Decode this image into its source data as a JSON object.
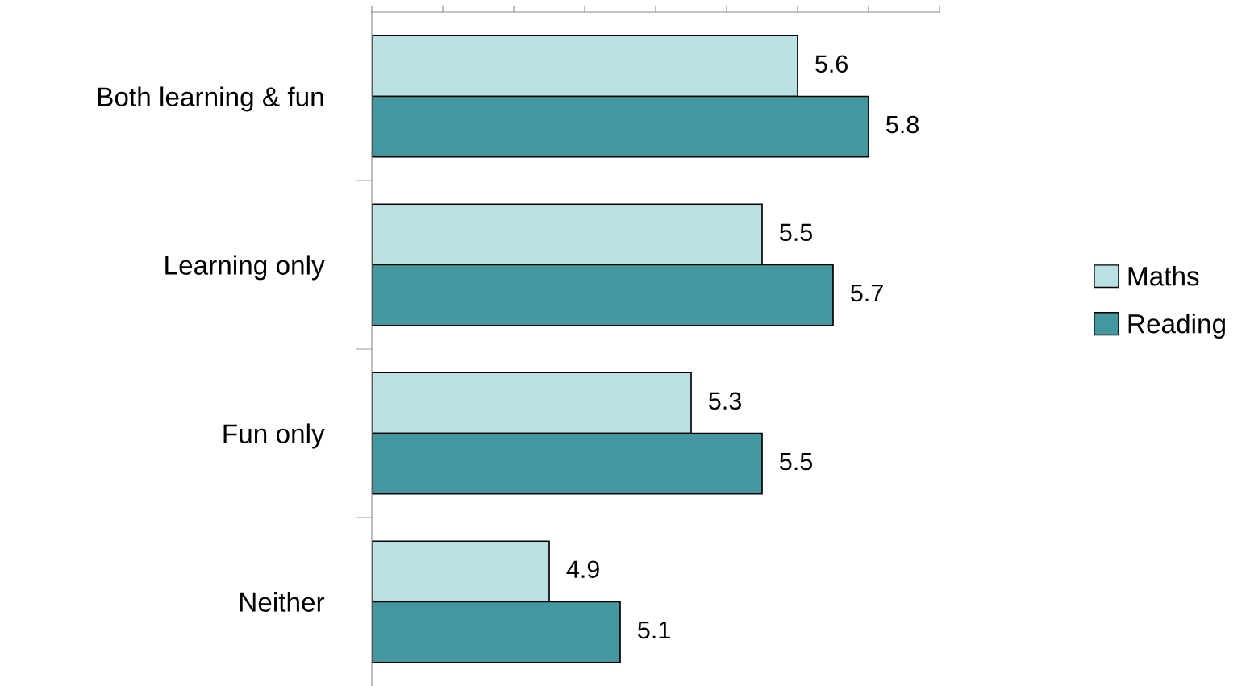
{
  "chart_data": {
    "type": "bar",
    "orientation": "horizontal",
    "categories": [
      "Both learning & fun",
      "Learning only",
      "Fun only",
      "Neither"
    ],
    "series": [
      {
        "name": "Maths",
        "color": "#b9e0e2",
        "values": [
          5.6,
          5.5,
          5.3,
          4.9
        ]
      },
      {
        "name": "Reading",
        "color": "#45979f",
        "values": [
          5.8,
          5.7,
          5.5,
          5.1
        ]
      }
    ],
    "xlim": [
      4.4,
      6.0
    ],
    "xticks": [
      {
        "value": 4.4,
        "label": null
      },
      {
        "value": 4.6,
        "label": null
      },
      {
        "value": 4.8,
        "label": null
      },
      {
        "value": 5.0,
        "label": null
      },
      {
        "value": 5.2,
        "label": null
      },
      {
        "value": 5.4,
        "label": null
      },
      {
        "value": 5.6,
        "label": null
      },
      {
        "value": 5.8,
        "label": null
      },
      {
        "value": 6.0,
        "label": null
      }
    ],
    "tick_labels": "y",
    "data_labels": true,
    "legend": "right",
    "grid": false
  }
}
